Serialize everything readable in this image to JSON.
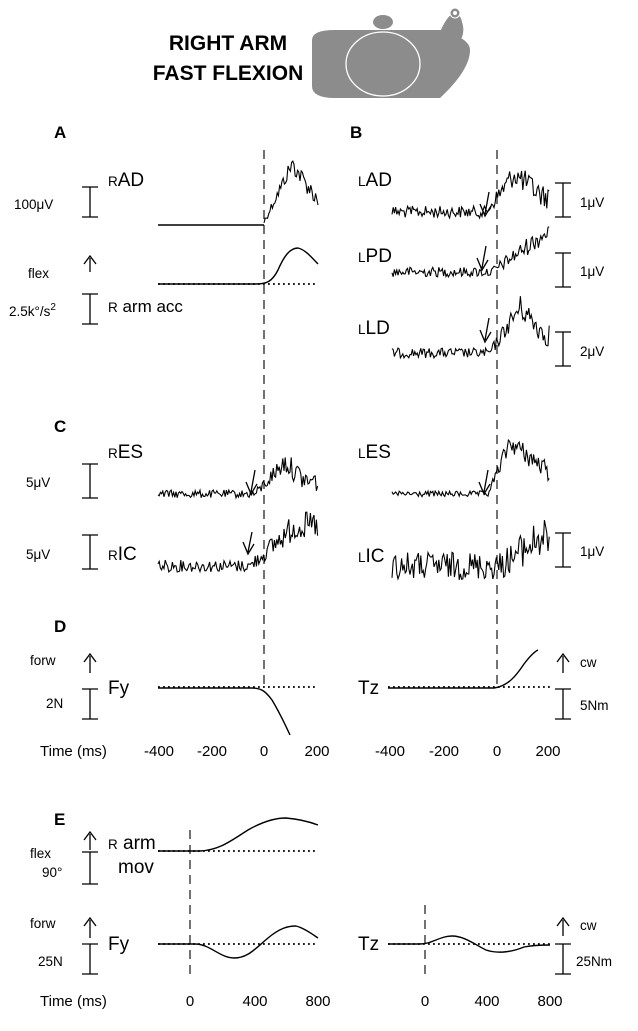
{
  "title": {
    "line1": "RIGHT ARM",
    "line2": "FAST FLEXION"
  },
  "icon": "person-top-view-icon",
  "panels": {
    "A": "A",
    "B": "B",
    "C": "C",
    "D": "D",
    "E": "E"
  },
  "A": {
    "rad": "AD",
    "rad_prefix": "R",
    "rad_scale": "100μV",
    "flex": "flex",
    "acc_prefix": "R",
    "acc": " arm acc",
    "acc_scale": "2.5k°/s",
    "acc_sup": "2"
  },
  "B": {
    "lad": "AD",
    "lpd": "PD",
    "lld": "LD",
    "prefix": "L",
    "lad_scale": "1μV",
    "lpd_scale": "1μV",
    "lld_scale": "2μV"
  },
  "C": {
    "res": "ES",
    "ric": "IC",
    "rprefix": "R",
    "les": "ES",
    "lic": "IC",
    "lprefix": "L",
    "res_scale": "5μV",
    "ric_scale": "5μV",
    "lic_scale": "1μV"
  },
  "D": {
    "forw": "forw",
    "fy": "Fy",
    "fy_scale": "2N",
    "tz": "Tz",
    "cw": "cw",
    "tz_scale": "5Nm",
    "time_label": "Time (ms)",
    "ticks": [
      "-400",
      "-200",
      "0",
      "200"
    ]
  },
  "E": {
    "flex": "flex",
    "arm_prefix": "R",
    "arm": " arm",
    "mov": "mov",
    "angle_scale": "90°",
    "forw": "forw",
    "fy": "Fy",
    "fy_scale": "25N",
    "tz": "Tz",
    "cw": "cw",
    "tz_scale": "25Nm",
    "time_label": "Time (ms)",
    "ticks": [
      "0",
      "400",
      "800"
    ]
  }
}
